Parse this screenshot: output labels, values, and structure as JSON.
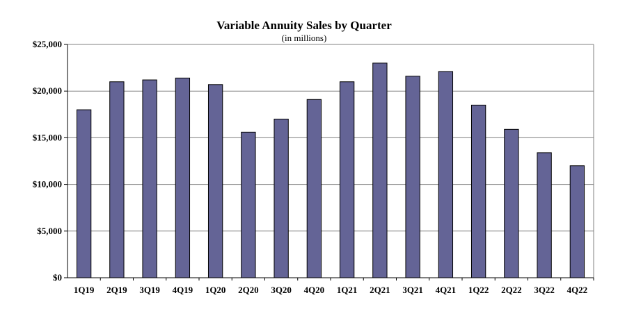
{
  "chart_data": {
    "type": "bar",
    "title": "Variable Annuity Sales by Quarter",
    "subtitle": "(in millions)",
    "xlabel": "",
    "ylabel": "",
    "categories": [
      "1Q19",
      "2Q19",
      "3Q19",
      "4Q19",
      "1Q20",
      "2Q20",
      "3Q20",
      "4Q20",
      "1Q21",
      "2Q21",
      "3Q21",
      "4Q21",
      "1Q22",
      "2Q22",
      "3Q22",
      "4Q22"
    ],
    "values": [
      18000,
      21000,
      21200,
      21400,
      20700,
      15600,
      17000,
      19100,
      21000,
      23000,
      21600,
      22100,
      18500,
      15900,
      13400,
      12000
    ],
    "ylim": [
      0,
      25000
    ],
    "yticks": [
      0,
      5000,
      10000,
      15000,
      20000,
      25000
    ],
    "ytick_labels": [
      "$0",
      "$5,000",
      "$10,000",
      "$15,000",
      "$20,000",
      "$25,000"
    ],
    "bar_color": "#646496",
    "grid": true,
    "legend": "none"
  }
}
